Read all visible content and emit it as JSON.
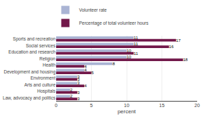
{
  "chart_data": {
    "type": "bar",
    "orientation": "horizontal",
    "categories": [
      "Sports and recreation",
      "Social services",
      "Education and research",
      "Religion",
      "Health",
      "Development and housing",
      "Environment",
      "Arts and culture",
      "Hospitals",
      "Law, advocacy and politics"
    ],
    "series": [
      {
        "name": "Volunteer rate",
        "color": "#aab4d4",
        "values": [
          11,
          11,
          10,
          10,
          8,
          4,
          3,
          3,
          2,
          2
        ]
      },
      {
        "name": "Percentage of total volunteer hours",
        "color": "#72184a",
        "values": [
          17,
          16,
          11,
          18,
          4,
          5,
          3,
          4,
          3,
          3
        ]
      }
    ],
    "xlabel": "percent",
    "xlim": [
      0,
      20
    ],
    "xticks": [
      0,
      5,
      10,
      15,
      20
    ],
    "grid": true,
    "legend": "top",
    "data_labels": true
  }
}
